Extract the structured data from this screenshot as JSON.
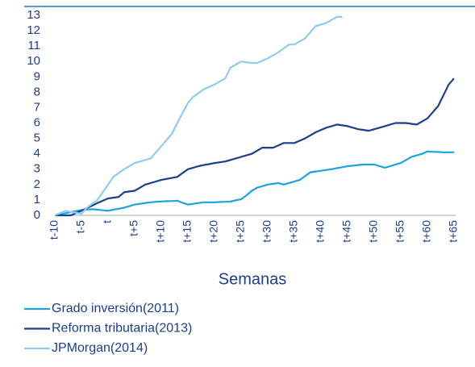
{
  "chart_data": {
    "type": "line",
    "xlabel": "Semanas",
    "categories": [
      "t-10",
      null,
      null,
      null,
      null,
      "t-5",
      null,
      null,
      null,
      null,
      "t",
      null,
      null,
      null,
      null,
      "t+5",
      null,
      null,
      null,
      null,
      "t+10",
      null,
      null,
      null,
      null,
      "t+15",
      null,
      null,
      null,
      null,
      "t+20",
      null,
      null,
      null,
      null,
      "t+25",
      null,
      null,
      null,
      null,
      "t+30",
      null,
      null,
      null,
      null,
      "t+35",
      null,
      null,
      null,
      null,
      "t+40",
      null,
      null,
      null,
      null,
      "t+45",
      null,
      null,
      null,
      null,
      "t+50",
      null,
      null,
      null,
      null,
      "t+55",
      null,
      null,
      null,
      null,
      "t+60",
      null,
      null,
      null,
      null,
      "t+65"
    ],
    "series": [
      {
        "name": "Grado inversión(2011)",
        "color": "#1aa3e0",
        "values": [
          0,
          0.07,
          0.14,
          0.21,
          0.28,
          0.35,
          0.38,
          0.4,
          0.37,
          0.33,
          0.3,
          0.37,
          0.43,
          0.5,
          0.6,
          0.7,
          0.75,
          0.8,
          0.85,
          0.88,
          0.9,
          0.92,
          0.93,
          0.95,
          0.82,
          0.7,
          0.75,
          0.8,
          0.85,
          0.85,
          0.85,
          0.87,
          0.88,
          0.9,
          0.98,
          1.05,
          1.3,
          1.6,
          1.8,
          1.9,
          2.0,
          2.05,
          2.1,
          2.0,
          2.1,
          2.2,
          2.3,
          2.55,
          2.8,
          2.85,
          2.9,
          2.95,
          3.0,
          3.07,
          3.13,
          3.2,
          3.23,
          3.27,
          3.3,
          3.3,
          3.3,
          3.2,
          3.1,
          3.2,
          3.3,
          3.4,
          3.6,
          3.8,
          3.9,
          4.0,
          4.15,
          4.13,
          4.12,
          4.1,
          4.1,
          4.1
        ]
      },
      {
        "name": "Reforma tributaria(2013)",
        "color": "#1c3f8a",
        "values": [
          0,
          0,
          0,
          0,
          0.15,
          0.3,
          0.47,
          0.63,
          0.8,
          0.95,
          1.1,
          1.15,
          1.2,
          1.5,
          1.55,
          1.6,
          1.8,
          2.0,
          2.1,
          2.2,
          2.3,
          2.37,
          2.43,
          2.5,
          2.75,
          3.0,
          3.1,
          3.2,
          3.27,
          3.33,
          3.4,
          3.45,
          3.5,
          3.6,
          3.7,
          3.8,
          3.9,
          4.0,
          4.2,
          4.4,
          4.4,
          4.4,
          4.55,
          4.7,
          4.7,
          4.7,
          4.85,
          5.0,
          5.2,
          5.4,
          5.55,
          5.7,
          5.8,
          5.9,
          5.85,
          5.8,
          5.7,
          5.6,
          5.55,
          5.5,
          5.6,
          5.7,
          5.8,
          5.9,
          6.0,
          6.0,
          6.0,
          5.95,
          5.9,
          6.1,
          6.3,
          6.7,
          7.1,
          7.8,
          8.5,
          8.9
        ]
      },
      {
        "name": "JPMorgan(2014)",
        "color": "#8fcdea",
        "values": [
          0,
          0.15,
          0.3,
          0.23,
          0.17,
          0.1,
          0.5,
          0.75,
          1.0,
          1.5,
          2.0,
          2.5,
          2.75,
          3.0,
          3.2,
          3.4,
          3.5,
          3.6,
          3.7,
          4.1,
          4.5,
          4.9,
          5.3,
          6.0,
          6.65,
          7.3,
          7.7,
          7.95,
          8.2,
          8.35,
          8.5,
          8.7,
          8.9,
          9.6,
          9.8,
          10.0,
          9.95,
          9.9,
          9.9,
          10.05,
          10.2,
          10.4,
          10.6,
          10.85,
          11.1,
          11.1,
          11.3,
          11.5,
          11.9,
          12.3,
          12.4,
          12.5,
          12.7,
          12.9,
          12.9,
          null,
          null,
          null,
          null,
          null,
          null,
          null,
          null,
          null,
          null,
          null,
          null,
          null,
          null,
          null,
          null,
          null,
          null,
          null,
          null,
          null
        ]
      }
    ],
    "ylim": [
      0,
      13
    ],
    "yticks": [
      0,
      1,
      2,
      3,
      4,
      5,
      6,
      7,
      8,
      9,
      10,
      11,
      12,
      13
    ]
  }
}
